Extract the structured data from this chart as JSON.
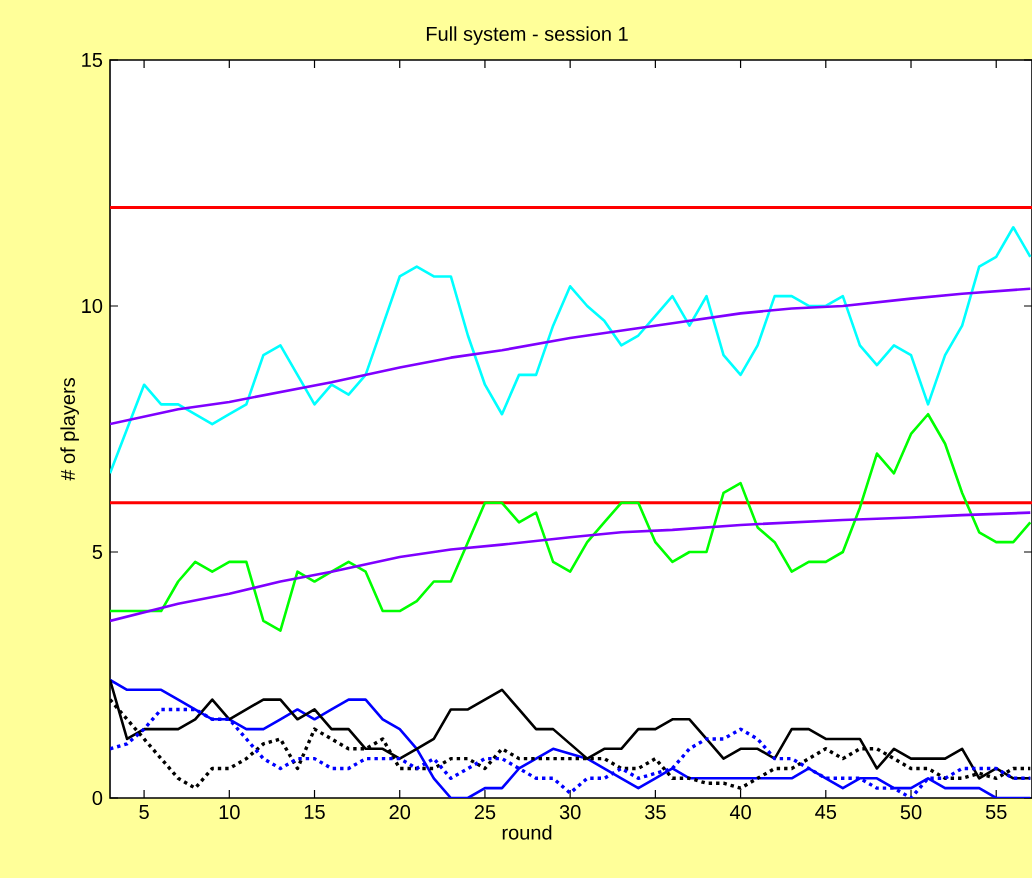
{
  "chart_data": {
    "type": "line",
    "title": "Full system - session 1",
    "xlabel": "round",
    "ylabel": "# of players",
    "x": [
      3,
      4,
      5,
      6,
      7,
      8,
      9,
      10,
      11,
      12,
      13,
      14,
      15,
      16,
      17,
      18,
      19,
      20,
      21,
      22,
      23,
      24,
      25,
      26,
      27,
      28,
      29,
      30,
      31,
      32,
      33,
      34,
      35,
      36,
      37,
      38,
      39,
      40,
      41,
      42,
      43,
      44,
      45,
      46,
      47,
      48,
      49,
      50,
      51,
      52,
      53,
      54,
      55,
      56,
      57
    ],
    "xlim": [
      3,
      57.1
    ],
    "ylim": [
      0,
      15
    ],
    "xticks": [
      5,
      10,
      15,
      20,
      25,
      30,
      35,
      40,
      45,
      50,
      55
    ],
    "yticks": [
      0,
      5,
      10,
      15
    ],
    "grid": false,
    "ref_lines": [
      {
        "axis": "y",
        "value": 12,
        "color": "#ff0000"
      },
      {
        "axis": "y",
        "value": 6,
        "color": "#ff0000"
      }
    ],
    "series": [
      {
        "color": "#00ffff",
        "values": [
          6.6,
          7.5,
          8.4,
          8.0,
          8.0,
          7.8,
          7.6,
          7.8,
          8.0,
          9.0,
          9.2,
          8.6,
          8.0,
          8.4,
          8.2,
          8.6,
          9.6,
          10.6,
          10.8,
          10.6,
          10.6,
          9.4,
          8.4,
          7.8,
          8.6,
          8.6,
          9.6,
          10.4,
          10.0,
          9.7,
          9.2,
          9.4,
          9.8,
          10.2,
          9.6,
          10.2,
          9.0,
          8.6,
          9.2,
          10.2,
          10.2,
          10.0,
          10.0,
          10.2,
          9.2,
          8.8,
          9.2,
          9.0,
          8.0,
          9.0,
          9.6,
          10.8,
          11.0,
          11.6,
          11.0
        ]
      },
      {
        "color": "#00ff00",
        "values": [
          3.8,
          3.8,
          3.8,
          3.8,
          4.4,
          4.8,
          4.6,
          4.8,
          4.8,
          3.6,
          3.4,
          4.6,
          4.4,
          4.6,
          4.8,
          4.6,
          3.8,
          3.8,
          4.0,
          4.4,
          4.4,
          5.2,
          6.0,
          6.0,
          5.6,
          5.8,
          4.8,
          4.6,
          5.2,
          5.6,
          6.0,
          6.0,
          5.2,
          4.8,
          5.0,
          5.0,
          6.2,
          6.4,
          5.5,
          5.2,
          4.6,
          4.8,
          4.8,
          5.0,
          5.9,
          7.0,
          6.6,
          7.4,
          7.8,
          7.2,
          6.2,
          5.4,
          5.2,
          5.2,
          5.6
        ]
      },
      {
        "color": "#7f00ff",
        "x": [
          3,
          7,
          10,
          13,
          16,
          20,
          23,
          26,
          30,
          33,
          36,
          40,
          43,
          46,
          50,
          53,
          57
        ],
        "values": [
          7.6,
          7.9,
          8.05,
          8.25,
          8.45,
          8.75,
          8.95,
          9.1,
          9.35,
          9.5,
          9.65,
          9.85,
          9.95,
          10.0,
          10.15,
          10.25,
          10.35
        ]
      },
      {
        "color": "#7f00ff",
        "x": [
          3,
          7,
          10,
          13,
          16,
          20,
          23,
          26,
          30,
          33,
          36,
          40,
          43,
          46,
          50,
          53,
          57
        ],
        "values": [
          3.6,
          3.95,
          4.15,
          4.4,
          4.6,
          4.9,
          5.05,
          5.15,
          5.3,
          5.4,
          5.45,
          5.55,
          5.6,
          5.65,
          5.7,
          5.75,
          5.8
        ]
      },
      {
        "color": "#0000ff",
        "line_style": "solid",
        "values": [
          2.4,
          2.2,
          2.2,
          2.2,
          2.0,
          1.8,
          1.6,
          1.6,
          1.4,
          1.4,
          1.6,
          1.8,
          1.6,
          1.8,
          2.0,
          2.0,
          1.6,
          1.4,
          1.0,
          0.4,
          0,
          0,
          0.2,
          0.2,
          0.6,
          0.8,
          1.0,
          0.9,
          0.8,
          0.6,
          0.4,
          0.2,
          0.4,
          0.6,
          0.4,
          0.4,
          0.4,
          0.4,
          0.4,
          0.4,
          0.4,
          0.6,
          0.4,
          0.2,
          0.4,
          0.4,
          0.2,
          0.2,
          0.4,
          0.2,
          0.2,
          0.2,
          0,
          0,
          0
        ]
      },
      {
        "color": "#000000",
        "line_style": "solid",
        "values": [
          2.4,
          1.2,
          1.4,
          1.4,
          1.4,
          1.6,
          2.0,
          1.6,
          1.8,
          2.0,
          2.0,
          1.6,
          1.8,
          1.4,
          1.4,
          1.0,
          1.0,
          0.8,
          1.0,
          1.2,
          1.8,
          1.8,
          2.0,
          2.2,
          1.8,
          1.4,
          1.4,
          1.1,
          0.8,
          1.0,
          1.0,
          1.4,
          1.4,
          1.6,
          1.6,
          1.2,
          0.8,
          1.0,
          1.0,
          0.8,
          1.4,
          1.4,
          1.2,
          1.2,
          1.2,
          0.6,
          1.0,
          0.8,
          0.8,
          0.8,
          1.0,
          0.4,
          0.6,
          0.4,
          0.4
        ]
      },
      {
        "color": "#000000",
        "line_style": "dotted",
        "values": [
          2.0,
          1.6,
          1.2,
          0.8,
          0.4,
          0.2,
          0.6,
          0.6,
          0.8,
          1.1,
          1.2,
          0.6,
          1.4,
          1.2,
          1.0,
          1.0,
          1.2,
          0.6,
          0.6,
          0.6,
          0.8,
          0.8,
          0.6,
          1.0,
          0.8,
          0.8,
          0.8,
          0.8,
          0.8,
          0.8,
          0.6,
          0.6,
          0.8,
          0.4,
          0.4,
          0.3,
          0.3,
          0.2,
          0.4,
          0.6,
          0.6,
          0.8,
          1.0,
          0.8,
          1.0,
          1.0,
          0.8,
          0.6,
          0.6,
          0.4,
          0.4,
          0.5,
          0.4,
          0.6,
          0.6
        ]
      },
      {
        "color": "#0000ff",
        "line_style": "dotted",
        "values": [
          1.0,
          1.1,
          1.4,
          1.8,
          1.8,
          1.8,
          1.6,
          1.6,
          1.2,
          0.8,
          0.6,
          0.8,
          0.8,
          0.6,
          0.6,
          0.8,
          0.8,
          0.8,
          0.6,
          0.8,
          0.4,
          0.6,
          0.8,
          0.8,
          0.6,
          0.4,
          0.4,
          0.1,
          0.4,
          0.4,
          0.6,
          0.4,
          0.5,
          0.6,
          1.0,
          1.2,
          1.2,
          1.4,
          1.2,
          0.8,
          0.8,
          0.6,
          0.4,
          0.4,
          0.4,
          0.2,
          0.2,
          0,
          0.4,
          0.4,
          0.6,
          0.6,
          0.6,
          0.4,
          0.4
        ]
      }
    ]
  }
}
